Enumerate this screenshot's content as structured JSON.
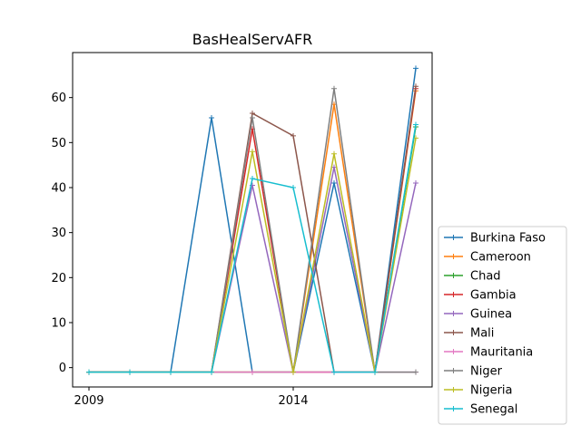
{
  "chart_data": {
    "type": "line",
    "title": "BasHealServAFR",
    "xlabel": "",
    "ylabel": "",
    "x": [
      2009,
      2010,
      2011,
      2012,
      2013,
      2014,
      2015,
      2016,
      2017
    ],
    "xlim": [
      2008.6,
      2017.4
    ],
    "ylim": [
      -4.3,
      70
    ],
    "xticks": [
      2009,
      2014
    ],
    "yticks": [
      0,
      10,
      20,
      30,
      40,
      50,
      60
    ],
    "grid": false,
    "legend_position": "lower right, outside the plot area",
    "series": [
      {
        "name": "Burkina Faso",
        "color": "#1f77b4",
        "values": [
          -1,
          -1,
          -1,
          55.5,
          -1,
          -1,
          41,
          -1,
          66.5
        ]
      },
      {
        "name": "Cameroon",
        "color": "#ff7f0e",
        "values": [
          -1,
          -1,
          -1,
          -1,
          -1,
          -1,
          58.5,
          -1,
          61.5
        ]
      },
      {
        "name": "Chad",
        "color": "#2ca02c",
        "values": [
          -1,
          -1,
          -1,
          -1,
          -1,
          -1,
          -1,
          -1,
          53.5
        ]
      },
      {
        "name": "Gambia",
        "color": "#d62728",
        "values": [
          -1,
          -1,
          -1,
          -1,
          53,
          -1,
          -1,
          -1,
          62
        ]
      },
      {
        "name": "Guinea",
        "color": "#9467bd",
        "values": [
          -1,
          -1,
          -1,
          -1,
          40.5,
          -1,
          44.5,
          -1,
          41
        ]
      },
      {
        "name": "Mali",
        "color": "#8c564b",
        "values": [
          -1,
          -1,
          -1,
          -1,
          56.5,
          51.5,
          -1,
          -1,
          62.5
        ]
      },
      {
        "name": "Mauritania",
        "color": "#e377c2",
        "values": [
          -1,
          -1,
          -1,
          -1,
          -1,
          -1,
          -1,
          -1,
          -1
        ]
      },
      {
        "name": "Niger",
        "color": "#7f7f7f",
        "values": [
          -1,
          -1,
          -1,
          -1,
          55.5,
          -1,
          62,
          -1,
          -1
        ]
      },
      {
        "name": "Nigeria",
        "color": "#bcbd22",
        "values": [
          -1,
          -1,
          -1,
          -1,
          48,
          -1,
          47.5,
          -1,
          51
        ]
      },
      {
        "name": "Senegal",
        "color": "#17becf",
        "values": [
          -1,
          -1,
          -1,
          -1,
          42,
          40,
          -1,
          -1,
          54
        ]
      }
    ]
  }
}
